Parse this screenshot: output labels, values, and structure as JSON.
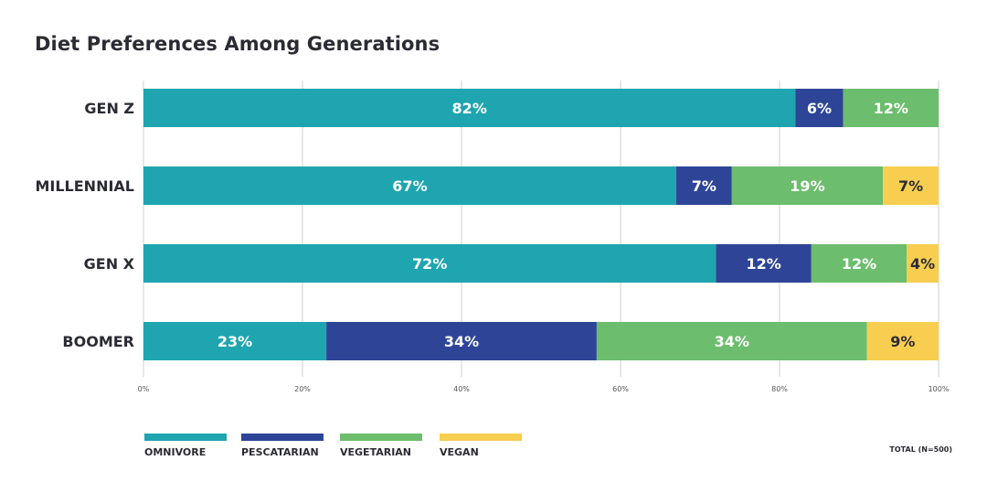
{
  "chart_data": {
    "type": "bar",
    "orientation": "horizontal",
    "stacked": true,
    "title": "Diet Preferences Among Generations",
    "categories": [
      "GEN Z",
      "MILLENNIAL",
      "GEN X",
      "BOOMER"
    ],
    "series": [
      {
        "name": "OMNIVORE",
        "color": "#1fa5b0",
        "label_color": "#ffffff",
        "values": [
          82,
          67,
          72,
          23
        ]
      },
      {
        "name": "PESCATARIAN",
        "color": "#2e4597",
        "label_color": "#ffffff",
        "values": [
          6,
          7,
          12,
          34
        ]
      },
      {
        "name": "VEGETARIAN",
        "color": "#6cbd6d",
        "label_color": "#ffffff",
        "values": [
          12,
          19,
          12,
          34
        ]
      },
      {
        "name": "VEGAN",
        "color": "#f7ce50",
        "label_color": "#2b2b33",
        "values": [
          0,
          7,
          4,
          9
        ]
      }
    ],
    "x_ticks": [
      "0%",
      "20%",
      "40%",
      "60%",
      "80%",
      "100%"
    ],
    "xlim": [
      0,
      100
    ],
    "grid": true,
    "legend_position": "bottom-left",
    "note": "TOTAL (N=500)"
  }
}
